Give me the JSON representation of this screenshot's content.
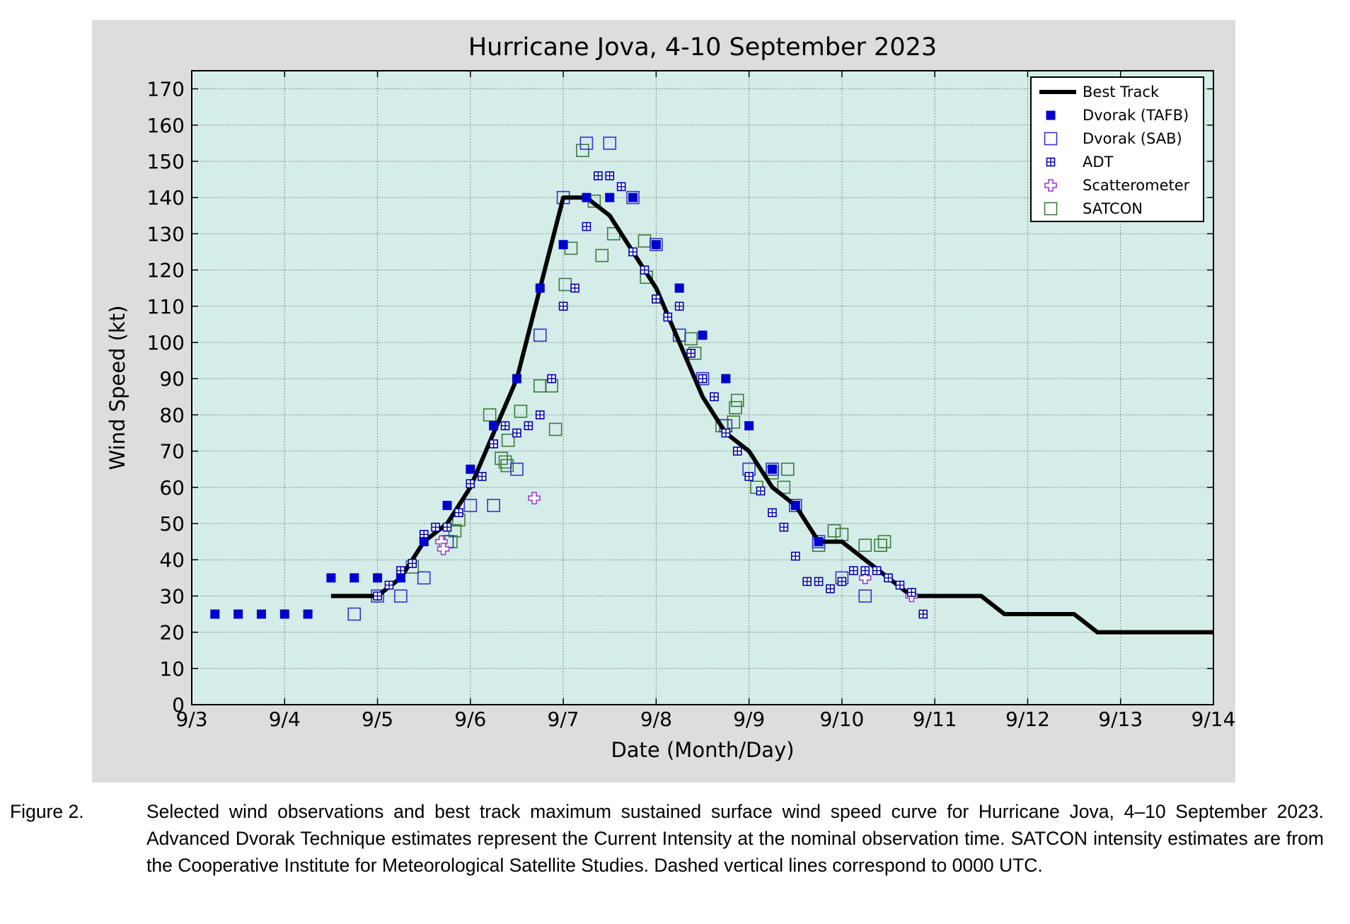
{
  "chart_data": {
    "type": "scatter",
    "title": "Hurricane Jova, 4-10 September 2023",
    "xlabel": "Date (Month/Day)",
    "ylabel": "Wind Speed (kt)",
    "xlim": [
      "2023-09-03T00:00",
      "2023-09-14T00:00"
    ],
    "ylim": [
      0,
      175
    ],
    "xticks": [
      "9/3",
      "9/4",
      "9/5",
      "9/6",
      "9/7",
      "9/8",
      "9/9",
      "9/10",
      "9/11",
      "9/12",
      "9/13",
      "9/14"
    ],
    "yticks": [
      0,
      10,
      20,
      30,
      40,
      50,
      60,
      70,
      80,
      90,
      100,
      110,
      120,
      130,
      140,
      150,
      160,
      170
    ],
    "grid": true,
    "legend_position": "top-right",
    "colors": {
      "panel_background": "#dddddd",
      "plot_background": "#d4ede9",
      "best_track": "#000000",
      "tafb": "#0000cc",
      "sab": "#3333cc",
      "adt": "#0000aa",
      "scatterometer": "#9933cc",
      "satcon": "#3d7a3d"
    },
    "series": [
      {
        "name": "Best Track",
        "marker": "line",
        "points": [
          [
            "2023-09-04T12:00",
            30
          ],
          [
            "2023-09-04T18:00",
            30
          ],
          [
            "2023-09-05T00:00",
            30
          ],
          [
            "2023-09-05T06:00",
            35
          ],
          [
            "2023-09-05T12:00",
            45
          ],
          [
            "2023-09-05T18:00",
            50
          ],
          [
            "2023-09-06T00:00",
            60
          ],
          [
            "2023-09-06T06:00",
            75
          ],
          [
            "2023-09-06T12:00",
            90
          ],
          [
            "2023-09-06T18:00",
            115
          ],
          [
            "2023-09-07T00:00",
            140
          ],
          [
            "2023-09-07T06:00",
            140
          ],
          [
            "2023-09-07T12:00",
            135
          ],
          [
            "2023-09-07T18:00",
            125
          ],
          [
            "2023-09-08T00:00",
            115
          ],
          [
            "2023-09-08T06:00",
            100
          ],
          [
            "2023-09-08T12:00",
            85
          ],
          [
            "2023-09-08T18:00",
            75
          ],
          [
            "2023-09-09T00:00",
            70
          ],
          [
            "2023-09-09T06:00",
            60
          ],
          [
            "2023-09-09T12:00",
            55
          ],
          [
            "2023-09-09T18:00",
            45
          ],
          [
            "2023-09-10T00:00",
            45
          ],
          [
            "2023-09-10T06:00",
            40
          ],
          [
            "2023-09-10T12:00",
            35
          ],
          [
            "2023-09-10T18:00",
            30
          ],
          [
            "2023-09-11T00:00",
            30
          ],
          [
            "2023-09-11T06:00",
            30
          ],
          [
            "2023-09-11T12:00",
            30
          ],
          [
            "2023-09-11T18:00",
            25
          ],
          [
            "2023-09-12T00:00",
            25
          ],
          [
            "2023-09-12T06:00",
            25
          ],
          [
            "2023-09-12T12:00",
            25
          ],
          [
            "2023-09-12T18:00",
            20
          ],
          [
            "2023-09-13T00:00",
            20
          ],
          [
            "2023-09-13T06:00",
            20
          ],
          [
            "2023-09-13T12:00",
            20
          ],
          [
            "2023-09-13T18:00",
            20
          ],
          [
            "2023-09-14T00:00",
            20
          ]
        ]
      },
      {
        "name": "Dvorak (TAFB)",
        "marker": "filled-square",
        "points": [
          [
            "2023-09-03T06:00",
            25
          ],
          [
            "2023-09-03T12:00",
            25
          ],
          [
            "2023-09-03T18:00",
            25
          ],
          [
            "2023-09-04T00:00",
            25
          ],
          [
            "2023-09-04T06:00",
            25
          ],
          [
            "2023-09-04T12:00",
            35
          ],
          [
            "2023-09-04T18:00",
            35
          ],
          [
            "2023-09-05T00:00",
            35
          ],
          [
            "2023-09-05T06:00",
            35
          ],
          [
            "2023-09-05T12:00",
            45
          ],
          [
            "2023-09-05T18:00",
            55
          ],
          [
            "2023-09-06T00:00",
            65
          ],
          [
            "2023-09-06T06:00",
            77
          ],
          [
            "2023-09-06T12:00",
            90
          ],
          [
            "2023-09-06T18:00",
            115
          ],
          [
            "2023-09-07T00:00",
            127
          ],
          [
            "2023-09-07T06:00",
            140
          ],
          [
            "2023-09-07T12:00",
            140
          ],
          [
            "2023-09-07T18:00",
            140
          ],
          [
            "2023-09-08T00:00",
            127
          ],
          [
            "2023-09-08T06:00",
            115
          ],
          [
            "2023-09-08T12:00",
            102
          ],
          [
            "2023-09-08T18:00",
            90
          ],
          [
            "2023-09-09T00:00",
            77
          ],
          [
            "2023-09-09T06:00",
            65
          ],
          [
            "2023-09-09T12:00",
            55
          ],
          [
            "2023-09-09T18:00",
            45
          ]
        ]
      },
      {
        "name": "Dvorak (SAB)",
        "marker": "open-square",
        "points": [
          [
            "2023-09-04T18:00",
            25
          ],
          [
            "2023-09-05T00:00",
            30
          ],
          [
            "2023-09-05T06:00",
            30
          ],
          [
            "2023-09-05T12:00",
            35
          ],
          [
            "2023-09-05T18:00",
            45
          ],
          [
            "2023-09-06T00:00",
            55
          ],
          [
            "2023-09-06T06:00",
            55
          ],
          [
            "2023-09-06T12:00",
            65
          ],
          [
            "2023-09-06T18:00",
            102
          ],
          [
            "2023-09-07T00:00",
            140
          ],
          [
            "2023-09-07T06:00",
            155
          ],
          [
            "2023-09-07T12:00",
            155
          ],
          [
            "2023-09-07T18:00",
            140
          ],
          [
            "2023-09-08T00:00",
            127
          ],
          [
            "2023-09-08T06:00",
            102
          ],
          [
            "2023-09-08T12:00",
            90
          ],
          [
            "2023-09-08T18:00",
            77
          ],
          [
            "2023-09-09T00:00",
            65
          ],
          [
            "2023-09-09T06:00",
            65
          ],
          [
            "2023-09-09T12:00",
            55
          ],
          [
            "2023-09-09T18:00",
            45
          ],
          [
            "2023-09-10T00:00",
            35
          ],
          [
            "2023-09-10T06:00",
            30
          ]
        ]
      },
      {
        "name": "ADT",
        "marker": "hash-square",
        "points": [
          [
            "2023-09-05T00:00",
            30
          ],
          [
            "2023-09-05T03:00",
            33
          ],
          [
            "2023-09-05T06:00",
            37
          ],
          [
            "2023-09-05T09:00",
            39
          ],
          [
            "2023-09-05T12:00",
            47
          ],
          [
            "2023-09-05T15:00",
            49
          ],
          [
            "2023-09-05T18:00",
            49
          ],
          [
            "2023-09-05T21:00",
            53
          ],
          [
            "2023-09-06T00:00",
            61
          ],
          [
            "2023-09-06T03:00",
            63
          ],
          [
            "2023-09-06T06:00",
            72
          ],
          [
            "2023-09-06T09:00",
            77
          ],
          [
            "2023-09-06T12:00",
            75
          ],
          [
            "2023-09-06T15:00",
            77
          ],
          [
            "2023-09-06T18:00",
            80
          ],
          [
            "2023-09-06T21:00",
            90
          ],
          [
            "2023-09-07T00:00",
            110
          ],
          [
            "2023-09-07T03:00",
            115
          ],
          [
            "2023-09-07T06:00",
            132
          ],
          [
            "2023-09-07T09:00",
            146
          ],
          [
            "2023-09-07T12:00",
            146
          ],
          [
            "2023-09-07T15:00",
            143
          ],
          [
            "2023-09-07T18:00",
            125
          ],
          [
            "2023-09-07T21:00",
            120
          ],
          [
            "2023-09-08T00:00",
            112
          ],
          [
            "2023-09-08T03:00",
            107
          ],
          [
            "2023-09-08T06:00",
            110
          ],
          [
            "2023-09-08T09:00",
            97
          ],
          [
            "2023-09-08T12:00",
            90
          ],
          [
            "2023-09-08T15:00",
            85
          ],
          [
            "2023-09-08T18:00",
            75
          ],
          [
            "2023-09-08T21:00",
            70
          ],
          [
            "2023-09-09T00:00",
            63
          ],
          [
            "2023-09-09T03:00",
            59
          ],
          [
            "2023-09-09T06:00",
            53
          ],
          [
            "2023-09-09T09:00",
            49
          ],
          [
            "2023-09-09T12:00",
            41
          ],
          [
            "2023-09-09T15:00",
            34
          ],
          [
            "2023-09-09T18:00",
            34
          ],
          [
            "2023-09-09T21:00",
            32
          ],
          [
            "2023-09-10T00:00",
            34
          ],
          [
            "2023-09-10T03:00",
            37
          ],
          [
            "2023-09-10T06:00",
            37
          ],
          [
            "2023-09-10T09:00",
            37
          ],
          [
            "2023-09-10T12:00",
            35
          ],
          [
            "2023-09-10T15:00",
            33
          ],
          [
            "2023-09-10T18:00",
            31
          ],
          [
            "2023-09-10T21:00",
            25
          ]
        ]
      },
      {
        "name": "Scatterometer",
        "marker": "open-cross",
        "points": [
          [
            "2023-09-05T16:30",
            45
          ],
          [
            "2023-09-05T17:00",
            43
          ],
          [
            "2023-09-06T16:30",
            57
          ],
          [
            "2023-09-10T06:00",
            35
          ],
          [
            "2023-09-10T18:00",
            30
          ]
        ]
      },
      {
        "name": "SATCON",
        "marker": "open-square",
        "points": [
          [
            "2023-09-05T09:00",
            38
          ],
          [
            "2023-09-05T19:00",
            45
          ],
          [
            "2023-09-05T20:00",
            48
          ],
          [
            "2023-09-05T21:00",
            51
          ],
          [
            "2023-09-06T05:00",
            80
          ],
          [
            "2023-09-06T08:00",
            68
          ],
          [
            "2023-09-06T09:00",
            67
          ],
          [
            "2023-09-06T09:30",
            66
          ],
          [
            "2023-09-06T09:45",
            73
          ],
          [
            "2023-09-06T13:00",
            81
          ],
          [
            "2023-09-06T18:00",
            88
          ],
          [
            "2023-09-06T21:00",
            88
          ],
          [
            "2023-09-06T22:00",
            76
          ],
          [
            "2023-09-07T00:30",
            116
          ],
          [
            "2023-09-07T02:00",
            126
          ],
          [
            "2023-09-07T05:00",
            153
          ],
          [
            "2023-09-07T08:00",
            139
          ],
          [
            "2023-09-07T10:00",
            124
          ],
          [
            "2023-09-07T13:00",
            130
          ],
          [
            "2023-09-07T21:00",
            128
          ],
          [
            "2023-09-07T21:30",
            118
          ],
          [
            "2023-09-08T09:00",
            101
          ],
          [
            "2023-09-08T10:00",
            97
          ],
          [
            "2023-09-08T17:00",
            77
          ],
          [
            "2023-09-08T20:00",
            78
          ],
          [
            "2023-09-08T20:30",
            82
          ],
          [
            "2023-09-08T21:00",
            84
          ],
          [
            "2023-09-09T02:00",
            60
          ],
          [
            "2023-09-09T06:00",
            64
          ],
          [
            "2023-09-09T09:00",
            60
          ],
          [
            "2023-09-09T10:00",
            65
          ],
          [
            "2023-09-09T18:00",
            44
          ],
          [
            "2023-09-09T22:00",
            48
          ],
          [
            "2023-09-10T00:00",
            47
          ],
          [
            "2023-09-10T06:00",
            44
          ],
          [
            "2023-09-10T10:00",
            44
          ],
          [
            "2023-09-10T11:00",
            45
          ]
        ]
      }
    ]
  },
  "caption": {
    "label": "Figure 2.",
    "text": "Selected wind observations and best track maximum sustained surface wind speed curve for Hurricane Jova, 4–10 September 2023.  Advanced Dvorak Technique estimates represent the Current Intensity at the nominal observation time.  SATCON intensity estimates are from the Cooperative Institute for Meteorological Satellite Studies.  Dashed vertical lines correspond to 0000 UTC."
  }
}
